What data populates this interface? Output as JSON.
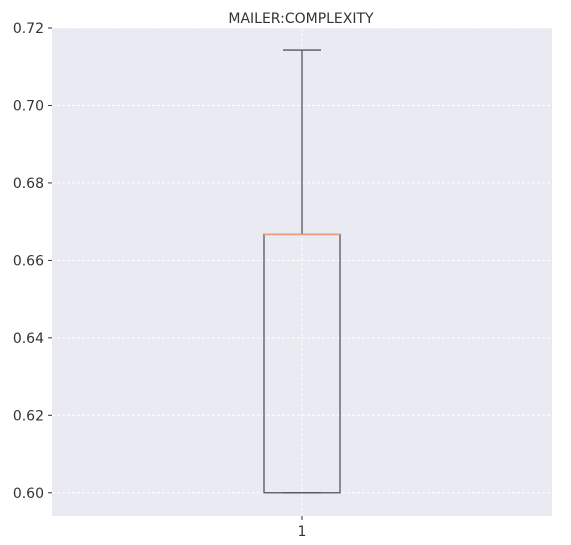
{
  "chart_data": {
    "type": "box",
    "title": "MAILER:COMPLEXITY",
    "xlabel": "",
    "ylabel": "",
    "categories": [
      "1"
    ],
    "ylim": [
      0.594,
      0.72
    ],
    "yticks": [
      "0.60",
      "0.62",
      "0.64",
      "0.66",
      "0.68",
      "0.70",
      "0.72"
    ],
    "boxes": [
      {
        "category": "1",
        "whisker_low": 0.6,
        "q1": 0.6,
        "median": 0.6667,
        "q3": 0.6667,
        "whisker_high": 0.7143
      }
    ],
    "grid": true,
    "colors": {
      "plot_background": "#eaeaf2",
      "grid": "#ffffff",
      "box": "#555566",
      "median": "#e8a07a"
    }
  }
}
